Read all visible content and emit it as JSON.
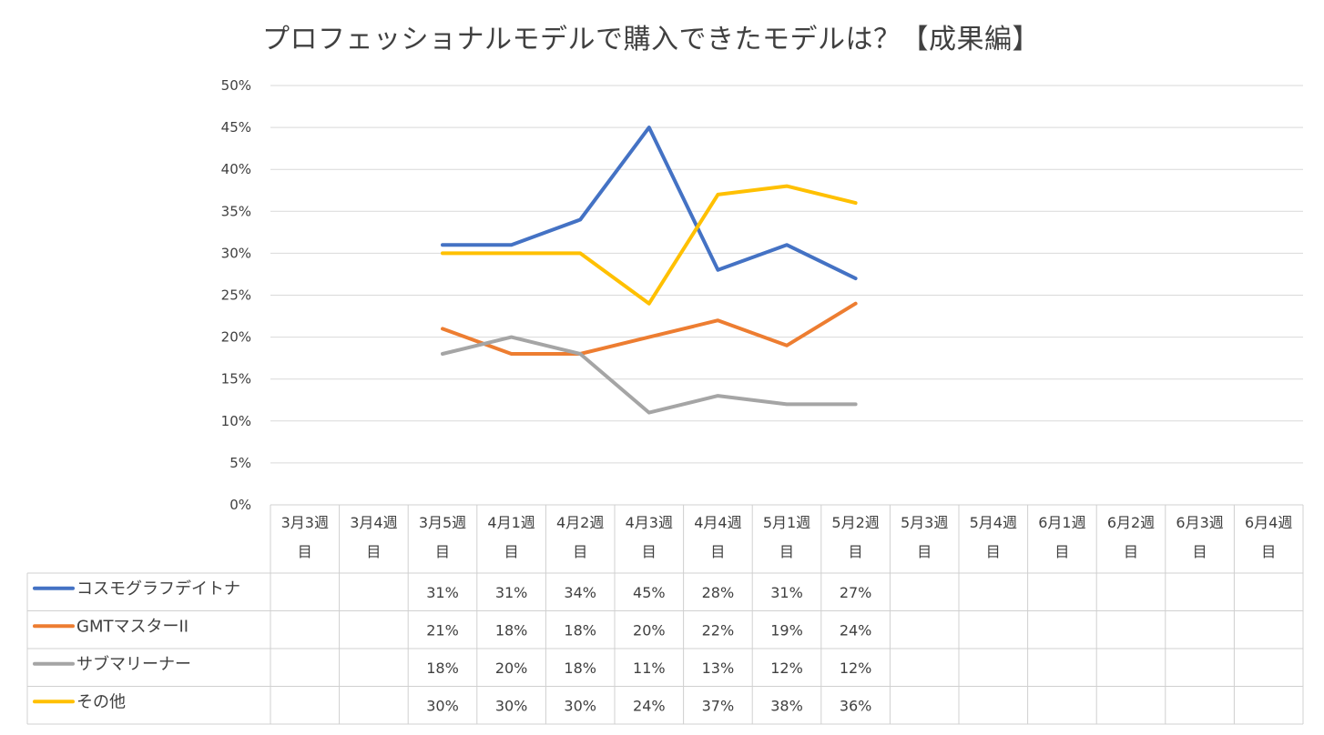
{
  "chart_data": {
    "type": "line",
    "title": "プロフェッショナルモデルで購入できたモデルは？【成果編】",
    "categories": [
      [
        "3月3週",
        "目"
      ],
      [
        "3月4週",
        "目"
      ],
      [
        "3月5週",
        "目"
      ],
      [
        "4月1週",
        "目"
      ],
      [
        "4月2週",
        "目"
      ],
      [
        "4月3週",
        "目"
      ],
      [
        "4月4週",
        "目"
      ],
      [
        "5月1週",
        "目"
      ],
      [
        "5月2週",
        "目"
      ],
      [
        "5月3週",
        "目"
      ],
      [
        "5月4週",
        "目"
      ],
      [
        "6月1週",
        "目"
      ],
      [
        "6月2週",
        "目"
      ],
      [
        "6月3週",
        "目"
      ],
      [
        "6月4週",
        "目"
      ]
    ],
    "yticks": [
      "0%",
      "5%",
      "10%",
      "15%",
      "20%",
      "25%",
      "30%",
      "35%",
      "40%",
      "45%",
      "50%"
    ],
    "ylim": [
      0,
      50
    ],
    "grid": true,
    "legend": "data-table",
    "series": [
      {
        "name": "コスモグラフデイトナ",
        "color": "#4472c4",
        "values": [
          null,
          null,
          31,
          31,
          34,
          45,
          28,
          31,
          27,
          null,
          null,
          null,
          null,
          null,
          null
        ]
      },
      {
        "name": "GMTマスターII",
        "color": "#ed7d31",
        "values": [
          null,
          null,
          21,
          18,
          18,
          20,
          22,
          19,
          24,
          null,
          null,
          null,
          null,
          null,
          null
        ]
      },
      {
        "name": "サブマリーナー",
        "color": "#a5a5a5",
        "values": [
          null,
          null,
          18,
          20,
          18,
          11,
          13,
          12,
          12,
          null,
          null,
          null,
          null,
          null,
          null
        ]
      },
      {
        "name": "その他",
        "color": "#ffc000",
        "values": [
          null,
          null,
          30,
          30,
          30,
          24,
          37,
          38,
          36,
          null,
          null,
          null,
          null,
          null,
          null
        ]
      }
    ]
  }
}
